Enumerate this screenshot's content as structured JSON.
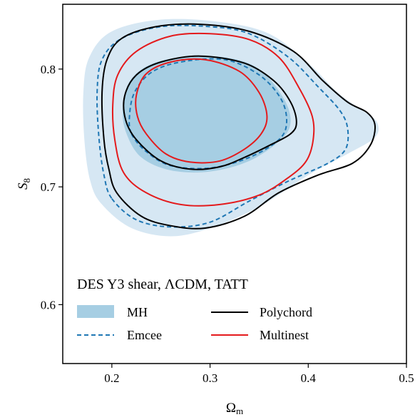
{
  "chart_data": {
    "type": "contour",
    "title": "DES Y3 shear, ΛCDM, TATT",
    "xlabel": "Ω",
    "xlabel_sub": "m",
    "ylabel": "S",
    "ylabel_sub": "8",
    "xlim": [
      0.15,
      0.5
    ],
    "ylim": [
      0.55,
      0.855
    ],
    "xticks": [
      0.2,
      0.3,
      0.4,
      0.5
    ],
    "yticks": [
      0.6,
      0.7,
      0.8
    ],
    "xtick_labels": [
      "0.2",
      "0.3",
      "0.4",
      "0.5"
    ],
    "ytick_labels": [
      "0.6",
      "0.7",
      "0.8"
    ],
    "grid": false,
    "legend_position": "bottom-left",
    "series": [
      {
        "name": "MH",
        "style": "filled",
        "color_outer": "#d6e7f3",
        "color_inner": "#a6cee3",
        "contours": [
          {
            "level": "95%",
            "points": [
              [
                0.19,
                0.685
              ],
              [
                0.22,
                0.665
              ],
              [
                0.26,
                0.658
              ],
              [
                0.3,
                0.665
              ],
              [
                0.35,
                0.683
              ],
              [
                0.4,
                0.71
              ],
              [
                0.44,
                0.728
              ],
              [
                0.468,
                0.742
              ],
              [
                0.47,
                0.755
              ],
              [
                0.455,
                0.765
              ],
              [
                0.43,
                0.78
              ],
              [
                0.4,
                0.805
              ],
              [
                0.36,
                0.83
              ],
              [
                0.31,
                0.84
              ],
              [
                0.25,
                0.842
              ],
              [
                0.2,
                0.832
              ],
              [
                0.177,
                0.81
              ],
              [
                0.171,
                0.78
              ],
              [
                0.172,
                0.74
              ],
              [
                0.178,
                0.705
              ]
            ]
          },
          {
            "level": "68%",
            "points": [
              [
                0.215,
                0.745
              ],
              [
                0.23,
                0.725
              ],
              [
                0.26,
                0.714
              ],
              [
                0.3,
                0.713
              ],
              [
                0.34,
                0.722
              ],
              [
                0.372,
                0.74
              ],
              [
                0.382,
                0.755
              ],
              [
                0.375,
                0.775
              ],
              [
                0.35,
                0.8
              ],
              [
                0.315,
                0.81
              ],
              [
                0.27,
                0.81
              ],
              [
                0.237,
                0.803
              ],
              [
                0.217,
                0.788
              ],
              [
                0.211,
                0.765
              ]
            ]
          }
        ]
      },
      {
        "name": "Emcee",
        "style": "dashed",
        "color": "#1f77b4",
        "contours": [
          {
            "level": "95%",
            "points": [
              [
                0.2,
                0.69
              ],
              [
                0.225,
                0.672
              ],
              [
                0.26,
                0.666
              ],
              [
                0.3,
                0.67
              ],
              [
                0.34,
                0.688
              ],
              [
                0.38,
                0.705
              ],
              [
                0.42,
                0.72
              ],
              [
                0.438,
                0.732
              ],
              [
                0.44,
                0.75
              ],
              [
                0.432,
                0.765
              ],
              [
                0.41,
                0.785
              ],
              [
                0.38,
                0.81
              ],
              [
                0.34,
                0.83
              ],
              [
                0.3,
                0.836
              ],
              [
                0.25,
                0.836
              ],
              [
                0.21,
                0.826
              ],
              [
                0.19,
                0.808
              ],
              [
                0.185,
                0.78
              ],
              [
                0.187,
                0.74
              ],
              [
                0.192,
                0.71
              ]
            ]
          },
          {
            "level": "68%",
            "points": [
              [
                0.22,
                0.745
              ],
              [
                0.235,
                0.73
              ],
              [
                0.26,
                0.718
              ],
              [
                0.3,
                0.716
              ],
              [
                0.34,
                0.725
              ],
              [
                0.37,
                0.74
              ],
              [
                0.378,
                0.755
              ],
              [
                0.372,
                0.775
              ],
              [
                0.35,
                0.795
              ],
              [
                0.315,
                0.808
              ],
              [
                0.27,
                0.806
              ],
              [
                0.24,
                0.797
              ],
              [
                0.223,
                0.78
              ],
              [
                0.218,
                0.76
              ]
            ]
          }
        ]
      },
      {
        "name": "Polychord",
        "style": "solid",
        "color": "#000000",
        "contours": [
          {
            "level": "95%",
            "points": [
              [
                0.205,
                0.695
              ],
              [
                0.23,
                0.675
              ],
              [
                0.26,
                0.667
              ],
              [
                0.295,
                0.665
              ],
              [
                0.335,
                0.675
              ],
              [
                0.37,
                0.695
              ],
              [
                0.41,
                0.71
              ],
              [
                0.445,
                0.72
              ],
              [
                0.463,
                0.735
              ],
              [
                0.468,
                0.752
              ],
              [
                0.46,
                0.763
              ],
              [
                0.44,
                0.772
              ],
              [
                0.415,
                0.79
              ],
              [
                0.385,
                0.815
              ],
              [
                0.34,
                0.832
              ],
              [
                0.29,
                0.838
              ],
              [
                0.245,
                0.836
              ],
              [
                0.21,
                0.826
              ],
              [
                0.195,
                0.808
              ],
              [
                0.19,
                0.78
              ],
              [
                0.192,
                0.74
              ],
              [
                0.197,
                0.715
              ]
            ]
          },
          {
            "level": "68%",
            "points": [
              [
                0.225,
                0.74
              ],
              [
                0.25,
                0.722
              ],
              [
                0.28,
                0.715
              ],
              [
                0.31,
                0.717
              ],
              [
                0.335,
                0.725
              ],
              [
                0.36,
                0.735
              ],
              [
                0.382,
                0.745
              ],
              [
                0.388,
                0.755
              ],
              [
                0.382,
                0.772
              ],
              [
                0.365,
                0.79
              ],
              [
                0.335,
                0.805
              ],
              [
                0.29,
                0.811
              ],
              [
                0.25,
                0.806
              ],
              [
                0.225,
                0.795
              ],
              [
                0.213,
                0.777
              ],
              [
                0.214,
                0.757
              ]
            ]
          }
        ]
      },
      {
        "name": "Multinest",
        "style": "solid",
        "color": "#e41a1c",
        "contours": [
          {
            "level": "95%",
            "points": [
              [
                0.212,
                0.712
              ],
              [
                0.235,
                0.695
              ],
              [
                0.27,
                0.685
              ],
              [
                0.31,
                0.685
              ],
              [
                0.35,
                0.693
              ],
              [
                0.38,
                0.708
              ],
              [
                0.398,
                0.722
              ],
              [
                0.405,
                0.74
              ],
              [
                0.404,
                0.76
              ],
              [
                0.39,
                0.785
              ],
              [
                0.37,
                0.81
              ],
              [
                0.34,
                0.825
              ],
              [
                0.3,
                0.83
              ],
              [
                0.26,
                0.828
              ],
              [
                0.225,
                0.815
              ],
              [
                0.206,
                0.795
              ],
              [
                0.201,
                0.77
              ],
              [
                0.203,
                0.74
              ]
            ]
          },
          {
            "level": "68%",
            "points": [
              [
                0.235,
                0.745
              ],
              [
                0.255,
                0.728
              ],
              [
                0.28,
                0.721
              ],
              [
                0.31,
                0.722
              ],
              [
                0.335,
                0.732
              ],
              [
                0.352,
                0.745
              ],
              [
                0.358,
                0.76
              ],
              [
                0.35,
                0.78
              ],
              [
                0.33,
                0.798
              ],
              [
                0.295,
                0.808
              ],
              [
                0.26,
                0.806
              ],
              [
                0.235,
                0.796
              ],
              [
                0.225,
                0.778
              ],
              [
                0.226,
                0.76
              ]
            ]
          }
        ]
      }
    ]
  }
}
